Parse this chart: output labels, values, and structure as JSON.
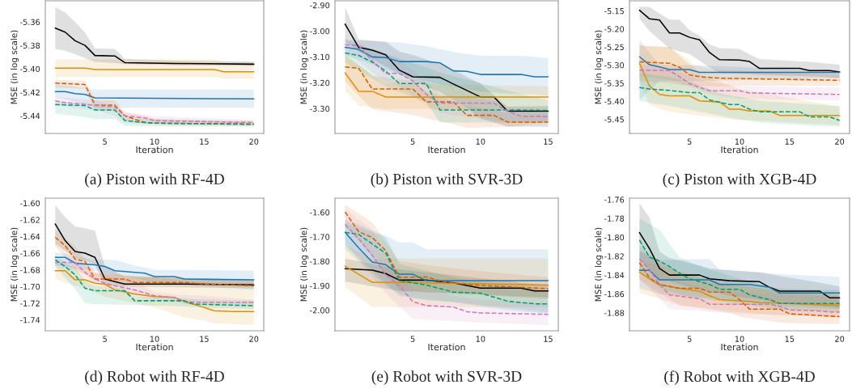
{
  "chart_data": [
    {
      "type": "line",
      "title": "(a) Piston with RF-4D",
      "xlabel": "Iteration",
      "ylabel": "MSE (in log scale)",
      "xlim": [
        -1,
        21
      ],
      "ylim": [
        -5.455,
        -5.342
      ],
      "xticks": [
        5,
        10,
        15,
        20
      ],
      "yticks": [
        -5.36,
        -5.38,
        {
          "value": -5.4,
          "label": "-5.40"
        },
        -5.42,
        -5.44
      ],
      "series": [
        {
          "color": "#000000",
          "line_style": "solid",
          "x": [
            0,
            1,
            2,
            3,
            4,
            6,
            7,
            12,
            20
          ],
          "values": [
            -5.3653,
            -5.3687,
            -5.376,
            -5.38,
            -5.3886,
            -5.389,
            -5.3947,
            -5.3954,
            -5.396
          ],
          "upper": [
            -5.3474,
            -5.352,
            -5.36,
            -5.369,
            -5.3824,
            -5.383,
            -5.3915,
            -5.393,
            -5.3938
          ],
          "lower": [
            -5.383,
            -5.3847,
            -5.3874,
            -5.391,
            -5.394,
            -5.395,
            -5.396,
            -5.397,
            -5.3975
          ]
        },
        {
          "color": "#de8f05",
          "line_style": "solid",
          "x": [
            0,
            3,
            4,
            16,
            17,
            20
          ],
          "values": [
            -5.3993,
            -5.3993,
            -5.4005,
            -5.4005,
            -5.4025,
            -5.4025
          ],
          "upper": [
            -5.392,
            -5.392,
            -5.392,
            -5.392,
            -5.394,
            -5.394
          ],
          "lower": [
            -5.4069,
            -5.4069,
            -5.4069,
            -5.4069,
            -5.4085,
            -5.4085
          ]
        },
        {
          "color": "#1f77b4",
          "line_style": "solid",
          "x": [
            0,
            1,
            2,
            3,
            4,
            20
          ],
          "values": [
            -5.4194,
            -5.4194,
            -5.421,
            -5.4217,
            -5.4247,
            -5.4256
          ],
          "upper": [
            -5.413,
            -5.414,
            -5.415,
            -5.416,
            -5.4176,
            -5.4176
          ],
          "lower": [
            -5.424,
            -5.426,
            -5.428,
            -5.43,
            -5.4331,
            -5.4331
          ]
        },
        {
          "color": "#d55e00",
          "line_style": "dashed",
          "x": [
            0,
            3,
            4,
            6,
            7,
            9,
            10,
            12,
            20
          ],
          "values": [
            -5.4121,
            -5.4133,
            -5.4309,
            -5.4309,
            -5.44,
            -5.4457,
            -5.4462,
            -5.4464,
            -5.4469
          ],
          "upper": [
            -5.4094,
            -5.41,
            -5.4263,
            -5.4268,
            -5.4366,
            -5.44,
            -5.4423,
            -5.443,
            -5.444
          ],
          "lower": [
            -5.416,
            -5.417,
            -5.4354,
            -5.4358,
            -5.444,
            -5.447,
            -5.4473,
            -5.448,
            -5.4487
          ]
        },
        {
          "color": "#cc78bc",
          "line_style": "dashed",
          "x": [
            0,
            1,
            3,
            4,
            6,
            7,
            9,
            10,
            20
          ],
          "values": [
            -5.4272,
            -5.4288,
            -5.4302,
            -5.4309,
            -5.4325,
            -5.44,
            -5.4418,
            -5.4441,
            -5.4457
          ],
          "upper": [
            -5.424,
            -5.4245,
            -5.426,
            -5.427,
            -5.431,
            -5.4375,
            -5.439,
            -5.44,
            -5.4437
          ],
          "lower": [
            -5.4313,
            -5.432,
            -5.4345,
            -5.435,
            -5.44,
            -5.4463,
            -5.4466,
            -5.4468,
            -5.4478
          ]
        },
        {
          "color": "#029e73",
          "line_style": "dashed",
          "x": [
            0,
            3,
            4,
            6,
            7,
            8,
            10,
            20
          ],
          "values": [
            -5.4304,
            -5.4313,
            -5.435,
            -5.435,
            -5.4439,
            -5.445,
            -5.4462,
            -5.4473
          ],
          "upper": [
            -5.4274,
            -5.429,
            -5.4313,
            -5.4335,
            -5.4416,
            -5.4425,
            -5.443,
            -5.4453
          ],
          "lower": [
            -5.4382,
            -5.441,
            -5.4428,
            -5.4428,
            -5.4487,
            -5.4488,
            -5.449,
            -5.4492
          ]
        }
      ]
    },
    {
      "type": "line",
      "title": "(b) Piston with SVR-3D",
      "xlabel": "Iteration",
      "ylabel": "MSE (in log scale)",
      "xlim": [
        -0.75,
        15.75
      ],
      "ylim": [
        -3.396,
        -2.883
      ],
      "xticks": [
        5,
        10,
        15
      ],
      "yticks": [
        {
          "value": -2.9,
          "label": "-2.90"
        },
        {
          "value": -3.0,
          "label": "-3.00"
        },
        {
          "value": -3.1,
          "label": "-3.10"
        },
        {
          "value": -3.2,
          "label": "-3.20"
        },
        {
          "value": -3.3,
          "label": "-3.30"
        }
      ],
      "series": [
        {
          "color": "#000000",
          "line_style": "solid",
          "x": [
            0,
            1,
            2,
            3,
            4,
            5,
            7,
            8,
            9,
            10,
            11,
            12,
            15
          ],
          "values": [
            -2.973,
            -3.063,
            -3.074,
            -3.092,
            -3.151,
            -3.177,
            -3.179,
            -3.205,
            -3.23,
            -3.255,
            -3.255,
            -3.31,
            -3.31
          ],
          "upper": [
            -2.907,
            -3.032,
            -3.037,
            -3.042,
            -3.079,
            -3.092,
            -3.128,
            -3.151,
            -3.177,
            -3.203,
            -3.248,
            -3.292,
            -3.29
          ],
          "lower": [
            -3.037,
            -3.079,
            -3.108,
            -3.136,
            -3.165,
            -3.193,
            -3.235,
            -3.266,
            -3.297,
            -3.338,
            -3.354,
            -3.37,
            -3.37
          ]
        },
        {
          "color": "#1f77b4",
          "line_style": "solid",
          "x": [
            0,
            1,
            2,
            3,
            4,
            6,
            7,
            8,
            9,
            10,
            13,
            14,
            15
          ],
          "values": [
            -3.063,
            -3.071,
            -3.1,
            -3.103,
            -3.118,
            -3.118,
            -3.123,
            -3.154,
            -3.156,
            -3.168,
            -3.168,
            -3.177,
            -3.177
          ],
          "upper": [
            -3.035,
            -3.037,
            -3.039,
            -3.042,
            -3.044,
            -3.058,
            -3.07,
            -3.081,
            -3.089,
            -3.096,
            -3.096,
            -3.1,
            -3.105
          ],
          "lower": [
            -3.094,
            -3.11,
            -3.13,
            -3.15,
            -3.165,
            -3.193,
            -3.206,
            -3.214,
            -3.225,
            -3.235,
            -3.244,
            -3.247,
            -3.25
          ]
        },
        {
          "color": "#de8f05",
          "line_style": "solid",
          "x": [
            0,
            1,
            2,
            3,
            15
          ],
          "values": [
            -3.162,
            -3.233,
            -3.233,
            -3.255,
            -3.255
          ],
          "upper": [
            -3.099,
            -3.13,
            -3.17,
            -3.203,
            -3.214
          ],
          "lower": [
            -3.229,
            -3.289,
            -3.295,
            -3.302,
            -3.302
          ]
        },
        {
          "color": "#d55e00",
          "line_style": "dashed",
          "x": [
            0,
            1,
            2,
            5,
            6,
            8,
            9,
            11,
            12,
            15
          ],
          "values": [
            -3.139,
            -3.144,
            -3.224,
            -3.224,
            -3.274,
            -3.274,
            -3.326,
            -3.326,
            -3.352,
            -3.352
          ],
          "upper": [
            -3.089,
            -3.13,
            -3.172,
            -3.193,
            -3.235,
            -3.27,
            -3.292,
            -3.305,
            -3.318,
            -3.318
          ],
          "lower": [
            -3.193,
            -3.25,
            -3.302,
            -3.325,
            -3.338,
            -3.36,
            -3.375,
            -3.372,
            -3.37,
            -3.354
          ]
        },
        {
          "color": "#029e73",
          "line_style": "dashed",
          "x": [
            0,
            1,
            2,
            3,
            4,
            6,
            7,
            12,
            15
          ],
          "values": [
            -3.085,
            -3.094,
            -3.12,
            -3.155,
            -3.203,
            -3.203,
            -3.305,
            -3.305,
            -3.307
          ],
          "upper": [
            -3.037,
            -3.054,
            -3.071,
            -3.089,
            -3.106,
            -3.141,
            -3.16,
            -3.23,
            -3.268
          ],
          "lower": [
            -3.122,
            -3.153,
            -3.183,
            -3.214,
            -3.235,
            -3.276,
            -3.354,
            -3.354,
            -3.352
          ]
        },
        {
          "color": "#cc78bc",
          "line_style": "dashed",
          "x": [
            0,
            1,
            2,
            3,
            4,
            5,
            6,
            7,
            11,
            12,
            13,
            15
          ],
          "values": [
            -3.053,
            -3.056,
            -3.115,
            -3.164,
            -3.164,
            -3.193,
            -3.245,
            -3.279,
            -3.279,
            -3.31,
            -3.33,
            -3.33
          ],
          "upper": [
            -3.027,
            -3.048,
            -3.069,
            -3.09,
            -3.11,
            -3.152,
            -3.194,
            -3.245,
            -3.27,
            -3.292,
            -3.295,
            -3.297
          ],
          "lower": [
            -3.084,
            -3.12,
            -3.16,
            -3.2,
            -3.214,
            -3.25,
            -3.285,
            -3.318,
            -3.345,
            -3.354,
            -3.354,
            -3.354
          ]
        }
      ]
    },
    {
      "type": "line",
      "title": "(c) Piston with XGB-4D",
      "xlabel": "Iteration",
      "ylabel": "MSE (in log scale)",
      "xlim": [
        -1,
        21
      ],
      "ylim": [
        -5.489,
        -5.122
      ],
      "xticks": [
        5,
        10,
        15,
        20
      ],
      "yticks": [
        -5.15,
        {
          "value": -5.2,
          "label": "-5.20"
        },
        -5.25,
        {
          "value": -5.3,
          "label": "-5.30"
        },
        -5.35,
        {
          "value": -5.4,
          "label": "-5.40"
        },
        -5.45
      ],
      "series": [
        {
          "color": "#000000",
          "line_style": "solid",
          "x": [
            0,
            1,
            2,
            3,
            4,
            5,
            6,
            7,
            8,
            10,
            11,
            12,
            16,
            17,
            19,
            20
          ],
          "values": [
            -5.148,
            -5.172,
            -5.175,
            -5.211,
            -5.211,
            -5.223,
            -5.23,
            -5.265,
            -5.285,
            -5.286,
            -5.29,
            -5.309,
            -5.309,
            -5.315,
            -5.315,
            -5.319
          ],
          "upper": [
            -5.139,
            -5.139,
            -5.157,
            -5.174,
            -5.174,
            -5.203,
            -5.218,
            -5.243,
            -5.253,
            -5.255,
            -5.27,
            -5.283,
            -5.289,
            -5.291,
            -5.296,
            -5.299
          ],
          "lower": [
            -5.172,
            -5.206,
            -5.23,
            -5.254,
            -5.262,
            -5.269,
            -5.288,
            -5.306,
            -5.321,
            -5.324,
            -5.325,
            -5.327,
            -5.33,
            -5.331,
            -5.334,
            -5.336
          ]
        },
        {
          "color": "#1f77b4",
          "line_style": "solid",
          "x": [
            0,
            1,
            2,
            3,
            5,
            6,
            20
          ],
          "values": [
            -5.277,
            -5.299,
            -5.305,
            -5.312,
            -5.312,
            -5.32,
            -5.32
          ],
          "upper": [
            -5.23,
            -5.265,
            -5.299,
            -5.3,
            -5.3,
            -5.3,
            -5.318
          ],
          "lower": [
            -5.396,
            -5.37,
            -5.344,
            -5.344,
            -5.344,
            -5.344,
            -5.336
          ]
        },
        {
          "color": "#de8f05",
          "line_style": "solid",
          "x": [
            0,
            1,
            2,
            3,
            5,
            6,
            8,
            9,
            10,
            11,
            13,
            14,
            20
          ],
          "values": [
            -5.295,
            -5.358,
            -5.381,
            -5.385,
            -5.385,
            -5.399,
            -5.402,
            -5.422,
            -5.422,
            -5.427,
            -5.427,
            -5.439,
            -5.439
          ],
          "upper": [
            -5.247,
            -5.248,
            -5.249,
            -5.25,
            -5.288,
            -5.325,
            -5.346,
            -5.356,
            -5.366,
            -5.371,
            -5.38,
            -5.386,
            -5.414
          ],
          "lower": [
            -5.344,
            -5.41,
            -5.42,
            -5.429,
            -5.436,
            -5.44,
            -5.446,
            -5.449,
            -5.452,
            -5.453,
            -5.455,
            -5.457,
            -5.466
          ]
        },
        {
          "color": "#d55e00",
          "line_style": "dashed",
          "x": [
            0,
            3,
            4,
            5,
            6,
            8,
            12,
            20
          ],
          "values": [
            -5.291,
            -5.295,
            -5.306,
            -5.327,
            -5.332,
            -5.336,
            -5.338,
            -5.342
          ],
          "upper": [
            -5.245,
            -5.25,
            -5.275,
            -5.299,
            -5.304,
            -5.314,
            -5.318,
            -5.326
          ],
          "lower": [
            -5.344,
            -5.35,
            -5.355,
            -5.358,
            -5.358,
            -5.358,
            -5.357,
            -5.357
          ]
        },
        {
          "color": "#cc78bc",
          "line_style": "dashed",
          "x": [
            0,
            3,
            4,
            5,
            6,
            7,
            10,
            11,
            20
          ],
          "values": [
            -5.314,
            -5.315,
            -5.332,
            -5.351,
            -5.362,
            -5.371,
            -5.371,
            -5.377,
            -5.381
          ],
          "upper": [
            -5.299,
            -5.31,
            -5.315,
            -5.332,
            -5.34,
            -5.348,
            -5.358,
            -5.359,
            -5.362
          ],
          "lower": [
            -5.332,
            -5.34,
            -5.35,
            -5.358,
            -5.37,
            -5.381,
            -5.393,
            -5.394,
            -5.397
          ]
        },
        {
          "color": "#029e73",
          "line_style": "dashed",
          "x": [
            0,
            1,
            3,
            5,
            6,
            7,
            8,
            9,
            10,
            11,
            12,
            16,
            17,
            19,
            20
          ],
          "values": [
            -5.362,
            -5.366,
            -5.37,
            -5.376,
            -5.376,
            -5.396,
            -5.403,
            -5.409,
            -5.409,
            -5.422,
            -5.429,
            -5.429,
            -5.443,
            -5.443,
            -5.453
          ],
          "upper": [
            -5.321,
            -5.325,
            -5.333,
            -5.345,
            -5.356,
            -5.366,
            -5.377,
            -5.383,
            -5.388,
            -5.394,
            -5.399,
            -5.406,
            -5.408,
            -5.412,
            -5.414
          ],
          "lower": [
            -5.399,
            -5.404,
            -5.413,
            -5.423,
            -5.429,
            -5.434,
            -5.44,
            -5.445,
            -5.45,
            -5.454,
            -5.459,
            -5.465,
            -5.467,
            -5.469,
            -5.47
          ]
        }
      ]
    },
    {
      "type": "line",
      "title": "(d) Robot with RF-4D",
      "xlabel": "Iteration",
      "ylabel": "MSE (in log scale)",
      "xlim": [
        -1,
        21
      ],
      "ylim": [
        -1.753,
        -1.594
      ],
      "xticks": [
        5,
        10,
        15,
        20
      ],
      "yticks": [
        {
          "value": -1.6,
          "label": "-1.60"
        },
        -1.62,
        -1.64,
        -1.66,
        -1.68,
        {
          "value": -1.7,
          "label": "-1.70"
        },
        -1.72,
        -1.74
      ],
      "series": [
        {
          "color": "#000000",
          "line_style": "solid",
          "x": [
            0,
            1,
            2,
            3,
            4,
            5,
            6,
            7,
            13,
            20
          ],
          "values": [
            -1.625,
            -1.645,
            -1.658,
            -1.66,
            -1.665,
            -1.691,
            -1.694,
            -1.697,
            -1.697,
            -1.698
          ],
          "upper": [
            -1.602,
            -1.617,
            -1.628,
            -1.63,
            -1.633,
            -1.676,
            -1.682,
            -1.688,
            -1.69,
            -1.692
          ],
          "lower": [
            -1.649,
            -1.657,
            -1.665,
            -1.669,
            -1.674,
            -1.699,
            -1.7,
            -1.7,
            -1.701,
            -1.702
          ]
        },
        {
          "color": "#1f77b4",
          "line_style": "solid",
          "x": [
            0,
            1,
            2,
            4,
            5,
            6,
            8,
            9,
            10,
            12,
            13,
            20
          ],
          "values": [
            -1.665,
            -1.665,
            -1.672,
            -1.674,
            -1.676,
            -1.681,
            -1.683,
            -1.684,
            -1.688,
            -1.688,
            -1.691,
            -1.692
          ],
          "upper": [
            -1.659,
            -1.661,
            -1.664,
            -1.668,
            -1.668,
            -1.668,
            -1.675,
            -1.677,
            -1.68,
            -1.68,
            -1.68,
            -1.681
          ],
          "lower": [
            -1.674,
            -1.676,
            -1.678,
            -1.681,
            -1.684,
            -1.687,
            -1.69,
            -1.693,
            -1.695,
            -1.697,
            -1.698,
            -1.704
          ]
        },
        {
          "color": "#de8f05",
          "line_style": "solid",
          "x": [
            0,
            1,
            2,
            3,
            4,
            5,
            6,
            8,
            10,
            12,
            13,
            15,
            16,
            18,
            20
          ],
          "values": [
            -1.681,
            -1.681,
            -1.692,
            -1.692,
            -1.696,
            -1.697,
            -1.704,
            -1.709,
            -1.712,
            -1.713,
            -1.718,
            -1.725,
            -1.729,
            -1.73,
            -1.73
          ],
          "upper": [
            -1.671,
            -1.674,
            -1.677,
            -1.68,
            -1.683,
            -1.686,
            -1.687,
            -1.688,
            -1.689,
            -1.691,
            -1.692,
            -1.694,
            -1.695,
            -1.695,
            -1.696
          ],
          "lower": [
            -1.691,
            -1.695,
            -1.699,
            -1.703,
            -1.707,
            -1.712,
            -1.715,
            -1.72,
            -1.725,
            -1.733,
            -1.737,
            -1.741,
            -1.744,
            -1.745,
            -1.746
          ]
        },
        {
          "color": "#d55e00",
          "line_style": "dashed",
          "x": [
            0,
            1,
            2,
            3,
            4,
            7,
            8,
            13,
            15,
            20
          ],
          "values": [
            -1.641,
            -1.651,
            -1.667,
            -1.67,
            -1.691,
            -1.691,
            -1.695,
            -1.695,
            -1.697,
            -1.699
          ],
          "upper": [
            -1.631,
            -1.642,
            -1.652,
            -1.667,
            -1.683,
            -1.686,
            -1.687,
            -1.689,
            -1.69,
            -1.692
          ],
          "lower": [
            -1.652,
            -1.665,
            -1.678,
            -1.685,
            -1.692,
            -1.694,
            -1.696,
            -1.697,
            -1.698,
            -1.7
          ]
        },
        {
          "color": "#cc78bc",
          "line_style": "dashed",
          "x": [
            0,
            2,
            3,
            4,
            5,
            6,
            8,
            10,
            12,
            13,
            15,
            20
          ],
          "values": [
            -1.671,
            -1.671,
            -1.683,
            -1.691,
            -1.696,
            -1.699,
            -1.704,
            -1.711,
            -1.713,
            -1.718,
            -1.719,
            -1.719
          ],
          "upper": [
            -1.667,
            -1.668,
            -1.675,
            -1.684,
            -1.686,
            -1.689,
            -1.693,
            -1.707,
            -1.709,
            -1.71,
            -1.711,
            -1.716
          ],
          "lower": [
            -1.675,
            -1.681,
            -1.686,
            -1.696,
            -1.7,
            -1.703,
            -1.711,
            -1.716,
            -1.718,
            -1.721,
            -1.722,
            -1.724
          ]
        },
        {
          "color": "#029e73",
          "line_style": "dashed",
          "x": [
            0,
            1,
            2,
            3,
            4,
            7,
            8,
            13,
            14,
            20
          ],
          "values": [
            -1.668,
            -1.676,
            -1.686,
            -1.702,
            -1.705,
            -1.705,
            -1.717,
            -1.717,
            -1.721,
            -1.723
          ],
          "upper": [
            -1.663,
            -1.67,
            -1.677,
            -1.693,
            -1.699,
            -1.702,
            -1.712,
            -1.714,
            -1.715,
            -1.717
          ],
          "lower": [
            -1.676,
            -1.69,
            -1.703,
            -1.72,
            -1.721,
            -1.722,
            -1.722,
            -1.724,
            -1.725,
            -1.727
          ]
        }
      ]
    },
    {
      "type": "line",
      "title": "(e) Robot with SVR-3D",
      "xlabel": "Iteration",
      "ylabel": "MSE (in log scale)",
      "xlim": [
        -0.75,
        15.75
      ],
      "ylim": [
        -2.084,
        -1.542
      ],
      "xticks": [
        5,
        10,
        15
      ],
      "yticks": [
        {
          "value": -1.6,
          "label": "-1.60"
        },
        {
          "value": -1.7,
          "label": "-1.70"
        },
        {
          "value": -1.8,
          "label": "-1.80"
        },
        {
          "value": -1.9,
          "label": "-1.90"
        },
        {
          "value": -2.0,
          "label": "-2.00"
        }
      ],
      "series": [
        {
          "color": "#000000",
          "line_style": "solid",
          "x": [
            0,
            2,
            3,
            4,
            6,
            8,
            10,
            13,
            14,
            15
          ],
          "values": [
            -1.83,
            -1.836,
            -1.85,
            -1.877,
            -1.877,
            -1.888,
            -1.91,
            -1.91,
            -1.921,
            -1.921
          ],
          "upper": [
            -1.789,
            -1.811,
            -1.822,
            -1.833,
            -1.845,
            -1.857,
            -1.869,
            -1.887,
            -1.893,
            -1.899
          ],
          "lower": [
            -1.882,
            -1.902,
            -1.912,
            -1.921,
            -1.926,
            -1.931,
            -1.936,
            -1.944,
            -1.946,
            -1.948
          ]
        },
        {
          "color": "#1f77b4",
          "line_style": "solid",
          "x": [
            0,
            1,
            2,
            3,
            4,
            5,
            6,
            15
          ],
          "values": [
            -1.682,
            -1.745,
            -1.803,
            -1.814,
            -1.853,
            -1.853,
            -1.879,
            -1.879
          ],
          "upper": [
            -1.63,
            -1.65,
            -1.675,
            -1.696,
            -1.723,
            -1.723,
            -1.751,
            -1.751
          ],
          "lower": [
            -1.734,
            -1.786,
            -1.838,
            -1.89,
            -1.943,
            -1.949,
            -1.955,
            -2.009
          ]
        },
        {
          "color": "#de8f05",
          "line_style": "solid",
          "x": [
            0,
            2,
            6,
            15
          ],
          "values": [
            -1.82,
            -1.886,
            -1.888,
            -1.897
          ],
          "upper": [
            -1.734,
            -1.789,
            -1.789,
            -1.789
          ],
          "lower": [
            -1.904,
            -1.987,
            -1.987,
            -1.987
          ]
        },
        {
          "color": "#d55e00",
          "line_style": "dashed",
          "x": [
            0,
            1,
            2,
            3,
            4,
            6,
            7,
            8,
            10,
            15
          ],
          "values": [
            -1.599,
            -1.679,
            -1.703,
            -1.756,
            -1.866,
            -1.864,
            -1.88,
            -1.888,
            -1.899,
            -1.912
          ],
          "upper": [
            -1.569,
            -1.605,
            -1.641,
            -1.72,
            -1.8,
            -1.815,
            -1.822,
            -1.829,
            -1.84,
            -1.866
          ],
          "lower": [
            -1.657,
            -1.718,
            -1.778,
            -1.85,
            -1.921,
            -1.926,
            -1.929,
            -1.932,
            -1.937,
            -1.954
          ]
        },
        {
          "color": "#029e73",
          "line_style": "dashed",
          "x": [
            0,
            1,
            2,
            3,
            4,
            5,
            6,
            8,
            10,
            12,
            14,
            15
          ],
          "values": [
            -1.682,
            -1.69,
            -1.729,
            -1.767,
            -1.879,
            -1.888,
            -1.897,
            -1.926,
            -1.93,
            -1.963,
            -1.974,
            -1.974
          ],
          "upper": [
            -1.641,
            -1.661,
            -1.681,
            -1.701,
            -1.811,
            -1.825,
            -1.838,
            -1.866,
            -1.882,
            -1.898,
            -1.914,
            -1.921
          ],
          "lower": [
            -1.751,
            -1.8,
            -1.85,
            -1.899,
            -1.932,
            -1.95,
            -1.96,
            -1.967,
            -1.985,
            -2.0,
            -2.01,
            -2.014
          ]
        },
        {
          "color": "#cc78bc",
          "line_style": "dashed",
          "x": [
            0,
            1,
            2,
            3,
            4,
            5,
            6,
            8,
            9,
            10,
            15
          ],
          "values": [
            -1.65,
            -1.707,
            -1.776,
            -1.855,
            -1.899,
            -1.965,
            -1.981,
            -1.987,
            -2.006,
            -2.011,
            -2.017
          ],
          "upper": [
            -1.586,
            -1.63,
            -1.67,
            -1.777,
            -1.845,
            -1.91,
            -1.922,
            -1.941,
            -1.95,
            -1.959,
            -1.97
          ],
          "lower": [
            -1.723,
            -1.793,
            -1.862,
            -1.932,
            -1.984,
            -2.036,
            -2.039,
            -2.044,
            -2.047,
            -2.05,
            -2.062
          ]
        }
      ]
    },
    {
      "type": "line",
      "title": "(f) Robot with XGB-4D",
      "xlabel": "Iteration",
      "ylabel": "MSE (in log scale)",
      "xlim": [
        -1,
        21
      ],
      "ylim": [
        -1.899,
        -1.7585
      ],
      "xticks": [
        5,
        10,
        15,
        20
      ],
      "yticks": [
        -1.76,
        -1.78,
        {
          "value": -1.8,
          "label": "-1.80"
        },
        -1.82,
        -1.84,
        -1.86,
        -1.88
      ],
      "series": [
        {
          "color": "#000000",
          "line_style": "solid",
          "x": [
            0,
            1,
            2,
            3,
            6,
            7,
            9,
            12,
            13,
            14,
            18,
            19,
            20
          ],
          "values": [
            -1.795,
            -1.812,
            -1.833,
            -1.84,
            -1.84,
            -1.844,
            -1.846,
            -1.847,
            -1.853,
            -1.857,
            -1.857,
            -1.864,
            -1.864
          ],
          "upper": [
            -1.764,
            -1.779,
            -1.815,
            -1.822,
            -1.83,
            -1.833,
            -1.835,
            -1.837,
            -1.839,
            -1.841,
            -1.848,
            -1.85,
            -1.852
          ],
          "lower": [
            -1.823,
            -1.834,
            -1.844,
            -1.847,
            -1.855,
            -1.857,
            -1.862,
            -1.866,
            -1.868,
            -1.87,
            -1.873,
            -1.874,
            -1.875
          ]
        },
        {
          "color": "#1f77b4",
          "line_style": "solid",
          "x": [
            0,
            1,
            2,
            7,
            8,
            11,
            13,
            14,
            20
          ],
          "values": [
            -1.835,
            -1.835,
            -1.845,
            -1.845,
            -1.85,
            -1.85,
            -1.853,
            -1.859,
            -1.859
          ],
          "upper": [
            -1.814,
            -1.819,
            -1.824,
            -1.823,
            -1.834,
            -1.836,
            -1.838,
            -1.839,
            -1.842
          ],
          "lower": [
            -1.854,
            -1.857,
            -1.86,
            -1.864,
            -1.865,
            -1.869,
            -1.872,
            -1.873,
            -1.876
          ]
        },
        {
          "color": "#de8f05",
          "line_style": "solid",
          "x": [
            0,
            1,
            2,
            4,
            6,
            7,
            8,
            11,
            12,
            15,
            20
          ],
          "values": [
            -1.837,
            -1.844,
            -1.85,
            -1.854,
            -1.857,
            -1.862,
            -1.866,
            -1.868,
            -1.869,
            -1.87,
            -1.872
          ],
          "upper": [
            -1.824,
            -1.827,
            -1.83,
            -1.836,
            -1.843,
            -1.846,
            -1.849,
            -1.853,
            -1.854,
            -1.856,
            -1.858
          ],
          "lower": [
            -1.859,
            -1.862,
            -1.865,
            -1.872,
            -1.874,
            -1.875,
            -1.877,
            -1.88,
            -1.881,
            -1.882,
            -1.885
          ]
        },
        {
          "color": "#d55e00",
          "line_style": "dashed",
          "x": [
            0,
            1,
            2,
            4,
            6,
            7,
            9,
            10,
            11,
            14,
            15,
            20
          ],
          "values": [
            -1.827,
            -1.843,
            -1.85,
            -1.854,
            -1.854,
            -1.858,
            -1.858,
            -1.866,
            -1.876,
            -1.876,
            -1.881,
            -1.884
          ],
          "upper": [
            -1.815,
            -1.82,
            -1.826,
            -1.837,
            -1.842,
            -1.845,
            -1.848,
            -1.85,
            -1.852,
            -1.857,
            -1.858,
            -1.863
          ],
          "lower": [
            -1.845,
            -1.852,
            -1.859,
            -1.872,
            -1.875,
            -1.877,
            -1.88,
            -1.884,
            -1.886,
            -1.89,
            -1.891,
            -1.892
          ]
        },
        {
          "color": "#cc78bc",
          "line_style": "dashed",
          "x": [
            0,
            1,
            2,
            3,
            6,
            7,
            13,
            14,
            15,
            18,
            19,
            20
          ],
          "values": [
            -1.823,
            -1.834,
            -1.85,
            -1.861,
            -1.865,
            -1.871,
            -1.871,
            -1.873,
            -1.877,
            -1.878,
            -1.879,
            -1.879
          ],
          "upper": [
            -1.809,
            -1.817,
            -1.826,
            -1.844,
            -1.853,
            -1.856,
            -1.86,
            -1.86,
            -1.861,
            -1.862,
            -1.862,
            -1.862
          ],
          "lower": [
            -1.844,
            -1.854,
            -1.865,
            -1.876,
            -1.878,
            -1.879,
            -1.882,
            -1.883,
            -1.883,
            -1.884,
            -1.885,
            -1.885
          ]
        },
        {
          "color": "#029e73",
          "line_style": "dashed",
          "x": [
            0,
            1,
            2,
            3,
            4,
            5,
            7,
            8,
            10,
            11,
            13,
            14,
            20
          ],
          "values": [
            -1.803,
            -1.821,
            -1.825,
            -1.831,
            -1.838,
            -1.844,
            -1.85,
            -1.855,
            -1.855,
            -1.861,
            -1.866,
            -1.87,
            -1.87
          ],
          "upper": [
            -1.78,
            -1.786,
            -1.792,
            -1.807,
            -1.821,
            -1.826,
            -1.834,
            -1.837,
            -1.844,
            -1.847,
            -1.852,
            -1.854,
            -1.856
          ],
          "lower": [
            -1.836,
            -1.845,
            -1.853,
            -1.857,
            -1.86,
            -1.863,
            -1.866,
            -1.868,
            -1.871,
            -1.872,
            -1.875,
            -1.876,
            -1.879
          ]
        }
      ]
    }
  ]
}
